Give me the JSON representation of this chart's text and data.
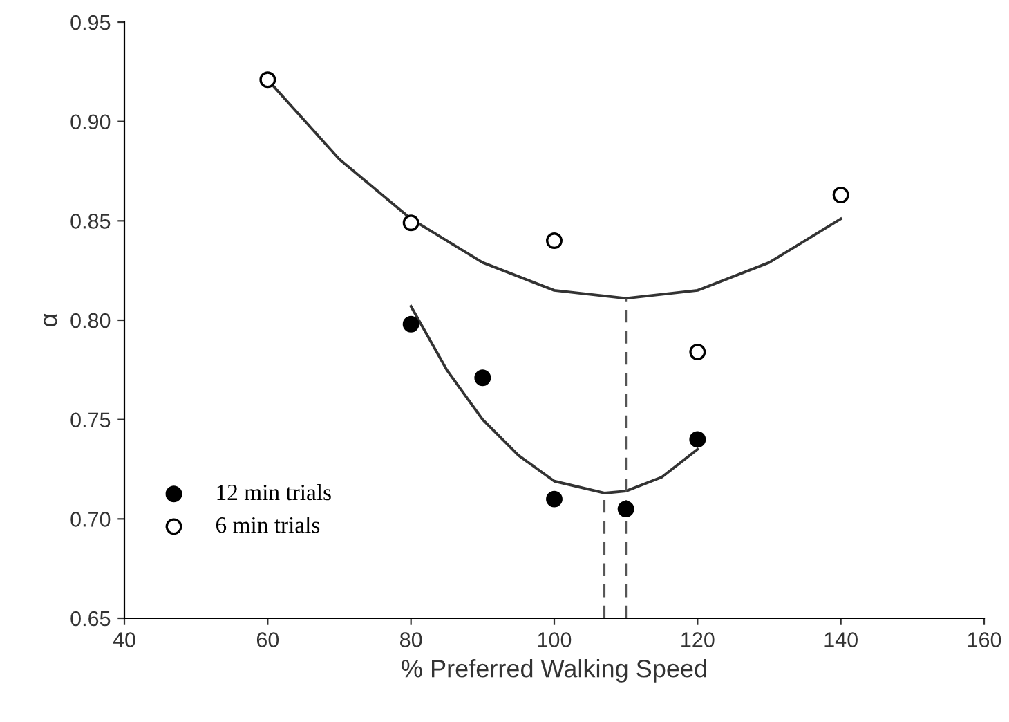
{
  "chart_data": {
    "type": "scatter",
    "xlabel": "% Preferred Walking Speed",
    "ylabel": "α",
    "xlim": [
      40,
      160
    ],
    "xticks": [
      40,
      60,
      80,
      100,
      120,
      140,
      160
    ],
    "ylim": [
      0.65,
      0.95
    ],
    "yticks": [
      {
        "value": 0.65,
        "label": "0.65"
      },
      {
        "value": 0.7,
        "label": "0.70"
      },
      {
        "value": 0.75,
        "label": "0.75"
      },
      {
        "value": 0.8,
        "label": "0.80"
      },
      {
        "value": 0.85,
        "label": "0.85"
      },
      {
        "value": 0.9,
        "label": "0.90"
      },
      {
        "value": 0.95,
        "label": "0.95"
      }
    ],
    "grid": false,
    "legend": "bottom left",
    "series": [
      {
        "name": "12 min trials",
        "marker": "circle",
        "color": "#000000",
        "x": [
          80,
          90,
          100,
          110,
          120
        ],
        "values": [
          0.798,
          0.771,
          0.71,
          0.705,
          0.74
        ]
      },
      {
        "name": "6 min trials",
        "marker": "circle",
        "color": "#ffffff",
        "x": [
          60,
          80,
          100,
          120,
          140
        ],
        "values": [
          0.921,
          0.849,
          0.84,
          0.784,
          0.863
        ]
      },
      {
        "type": "line",
        "line_style": "solid",
        "color": "#333333",
        "x": [
          60,
          70,
          80,
          90,
          100,
          110,
          120,
          130,
          140
        ],
        "values": [
          0.921,
          0.881,
          0.851,
          0.829,
          0.815,
          0.811,
          0.815,
          0.829,
          0.851
        ]
      },
      {
        "type": "line",
        "line_style": "solid",
        "color": "#333333",
        "x": [
          80,
          85,
          90,
          95,
          100,
          107,
          110,
          115,
          120
        ],
        "values": [
          0.807,
          0.775,
          0.75,
          0.732,
          0.719,
          0.713,
          0.714,
          0.721,
          0.735
        ]
      },
      {
        "type": "line",
        "line_style": "dashed",
        "color": "#555555",
        "x": [
          110,
          110
        ],
        "values": [
          0.65,
          0.811
        ]
      },
      {
        "type": "line",
        "line_style": "dashed",
        "color": "#555555",
        "x": [
          107,
          107
        ],
        "values": [
          0.65,
          0.713
        ]
      }
    ]
  }
}
